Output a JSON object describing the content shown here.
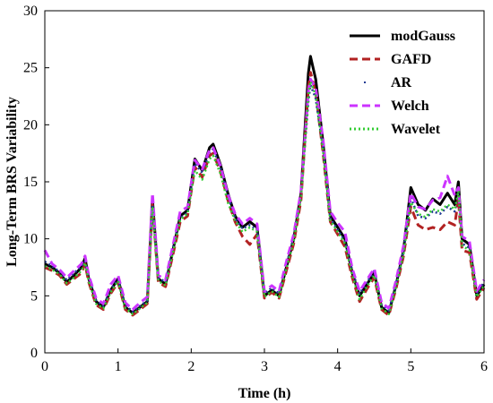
{
  "chart_data": {
    "type": "line",
    "xlabel": "Time (h)",
    "ylabel": "Long-Term BRS Variability",
    "xlim": [
      0,
      6
    ],
    "ylim": [
      0,
      30
    ],
    "xticks": [
      0,
      1,
      2,
      3,
      4,
      5,
      6
    ],
    "yticks": [
      0,
      5,
      10,
      15,
      20,
      25,
      30
    ],
    "grid": false,
    "legend_position": "top-right",
    "x": [
      0,
      0.1,
      0.2,
      0.3,
      0.4,
      0.5,
      0.55,
      0.6,
      0.7,
      0.8,
      0.9,
      1.0,
      1.1,
      1.2,
      1.3,
      1.4,
      1.47,
      1.55,
      1.65,
      1.75,
      1.85,
      1.95,
      2.05,
      2.15,
      2.25,
      2.3,
      2.4,
      2.5,
      2.6,
      2.7,
      2.8,
      2.9,
      3.0,
      3.1,
      3.2,
      3.3,
      3.4,
      3.5,
      3.6,
      3.63,
      3.7,
      3.8,
      3.9,
      4.0,
      4.1,
      4.2,
      4.3,
      4.4,
      4.5,
      4.6,
      4.7,
      4.8,
      4.9,
      5.0,
      5.1,
      5.2,
      5.3,
      5.4,
      5.5,
      5.6,
      5.65,
      5.7,
      5.8,
      5.9,
      6.0
    ],
    "series": [
      {
        "name": "modGauss",
        "color": "#000000",
        "style": "solid",
        "values": [
          7.8,
          7.5,
          7.0,
          6.2,
          6.8,
          7.5,
          8.3,
          6.5,
          4.5,
          4.0,
          5.5,
          6.5,
          4.0,
          3.5,
          4.0,
          4.5,
          13.5,
          6.5,
          6.0,
          9.0,
          12.0,
          12.5,
          17.0,
          16.0,
          18.0,
          18.3,
          16.5,
          14.0,
          12.0,
          11.0,
          11.5,
          11.0,
          5.0,
          5.5,
          5.0,
          7.5,
          10.0,
          14.0,
          24.5,
          26.0,
          24.0,
          18.5,
          12.0,
          11.0,
          10.0,
          7.0,
          5.0,
          6.0,
          7.0,
          4.0,
          3.5,
          6.0,
          9.0,
          14.5,
          13.0,
          12.5,
          13.5,
          13.0,
          14.0,
          13.0,
          15.0,
          10.0,
          9.5,
          5.0,
          6.0
        ]
      },
      {
        "name": "GAFD",
        "color": "#b22222",
        "style": "dashed",
        "values": [
          7.5,
          7.2,
          6.8,
          6.0,
          6.5,
          7.0,
          7.8,
          6.2,
          4.2,
          3.8,
          5.2,
          6.2,
          3.8,
          3.3,
          3.8,
          4.3,
          13.0,
          6.2,
          5.8,
          8.6,
          11.5,
          12.0,
          16.3,
          15.4,
          17.3,
          17.5,
          15.9,
          13.4,
          11.5,
          10.2,
          9.5,
          10.4,
          4.8,
          5.3,
          4.8,
          7.2,
          9.6,
          13.4,
          23.3,
          24.6,
          22.8,
          17.6,
          11.5,
          10.4,
          9.3,
          6.6,
          4.5,
          5.6,
          6.6,
          3.8,
          3.3,
          5.7,
          8.5,
          12.8,
          11.2,
          10.8,
          11.0,
          10.8,
          11.5,
          11.2,
          13.5,
          9.0,
          8.8,
          4.7,
          5.7
        ]
      },
      {
        "name": "AR",
        "color": "#1f3a93",
        "style": "dotted",
        "values": [
          8.0,
          7.6,
          7.1,
          6.4,
          7.0,
          7.6,
          8.0,
          6.6,
          4.6,
          4.1,
          5.6,
          6.4,
          4.2,
          3.6,
          4.1,
          4.6,
          13.2,
          6.6,
          6.2,
          9.2,
          11.8,
          12.3,
          16.6,
          15.8,
          17.6,
          17.9,
          16.2,
          13.8,
          11.8,
          10.9,
          11.2,
          10.8,
          5.2,
          5.7,
          5.2,
          7.7,
          10.2,
          13.8,
          22.0,
          23.5,
          22.3,
          18.0,
          11.8,
          10.8,
          9.8,
          7.2,
          5.2,
          6.2,
          7.2,
          4.2,
          3.7,
          6.1,
          9.0,
          13.6,
          12.0,
          11.8,
          12.4,
          12.2,
          12.8,
          12.4,
          14.0,
          9.6,
          9.2,
          5.2,
          6.2
        ]
      },
      {
        "name": "Welch",
        "color": "#cc33ff",
        "style": "dashed",
        "values": [
          9.0,
          7.8,
          7.3,
          6.6,
          7.2,
          7.8,
          8.5,
          6.8,
          4.8,
          4.3,
          6.0,
          6.8,
          4.4,
          3.8,
          4.4,
          4.9,
          14.0,
          6.8,
          6.4,
          9.4,
          12.4,
          12.8,
          16.9,
          16.1,
          17.8,
          18.0,
          16.4,
          13.9,
          12.2,
          11.3,
          11.8,
          11.3,
          5.4,
          5.9,
          5.4,
          8.0,
          10.4,
          14.2,
          23.0,
          24.0,
          23.2,
          18.8,
          12.4,
          11.4,
          10.6,
          7.4,
          5.4,
          6.4,
          7.4,
          4.4,
          3.9,
          6.4,
          9.4,
          14.0,
          12.8,
          12.6,
          13.4,
          13.6,
          15.5,
          13.8,
          14.5,
          10.2,
          9.8,
          5.4,
          6.4
        ]
      },
      {
        "name": "Wavelet",
        "color": "#33cc33",
        "style": "dotted",
        "values": [
          7.6,
          7.3,
          6.9,
          6.1,
          6.6,
          7.2,
          7.9,
          6.3,
          4.3,
          3.9,
          5.3,
          6.3,
          3.9,
          3.4,
          3.9,
          4.4,
          12.8,
          6.3,
          5.9,
          8.8,
          11.7,
          12.2,
          16.0,
          15.2,
          17.0,
          17.3,
          15.7,
          13.2,
          11.6,
          10.6,
          11.0,
          10.6,
          4.9,
          5.4,
          4.9,
          7.4,
          9.8,
          13.6,
          22.6,
          23.8,
          22.6,
          17.8,
          11.6,
          10.6,
          9.6,
          6.8,
          4.7,
          5.8,
          6.8,
          3.9,
          3.4,
          5.8,
          8.7,
          13.2,
          12.2,
          11.9,
          12.6,
          12.4,
          13.0,
          12.6,
          14.2,
          9.4,
          9.0,
          4.9,
          5.9
        ]
      }
    ]
  }
}
